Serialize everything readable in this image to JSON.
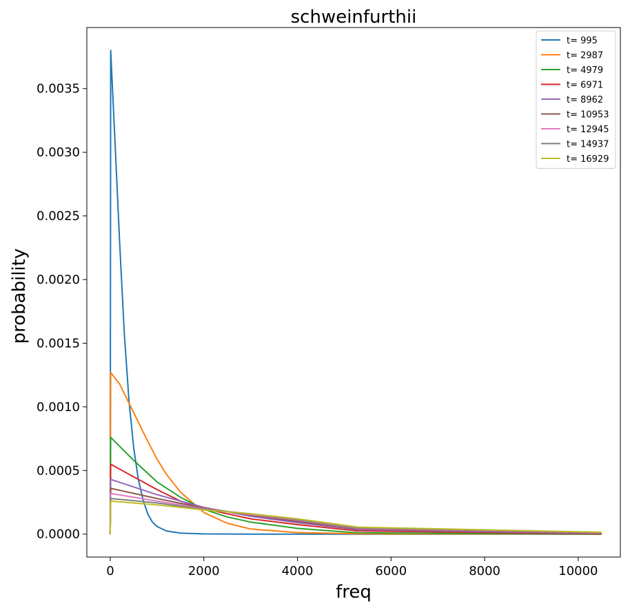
{
  "chart_data": {
    "type": "line",
    "title": "schweinfurthii",
    "xlabel": "freq",
    "ylabel": "probability",
    "xlim": [
      -500,
      10900
    ],
    "ylim": [
      -0.00018,
      0.00398
    ],
    "xticks": [
      0,
      2000,
      4000,
      6000,
      8000,
      10000
    ],
    "xtick_labels": [
      "0",
      "2000",
      "4000",
      "6000",
      "8000",
      "10000"
    ],
    "yticks": [
      0.0,
      0.0005,
      0.001,
      0.0015,
      0.002,
      0.0025,
      0.003,
      0.0035
    ],
    "ytick_labels": [
      "0.0000",
      "0.0005",
      "0.0010",
      "0.0015",
      "0.0020",
      "0.0025",
      "0.0030",
      "0.0035"
    ],
    "grid": false,
    "legend_position": "top-right",
    "series": [
      {
        "name": "t= 995",
        "color": "#1f77b4",
        "x": [
          0,
          10,
          100,
          200,
          300,
          400,
          500,
          600,
          700,
          800,
          900,
          1000,
          1200,
          1500,
          2000,
          3000,
          5300,
          10500
        ],
        "y": [
          0,
          0.0038,
          0.0031,
          0.0023,
          0.00158,
          0.00105,
          0.00068,
          0.00043,
          0.00027,
          0.00016,
          9.5e-05,
          6e-05,
          2.5e-05,
          8e-06,
          2e-06,
          0,
          0,
          0
        ]
      },
      {
        "name": "t= 2987",
        "color": "#ff7f0e",
        "x": [
          0,
          10,
          200,
          400,
          600,
          800,
          1000,
          1200,
          1500,
          2000,
          2500,
          3000,
          4000,
          5300,
          10500
        ],
        "y": [
          0,
          0.00127,
          0.00118,
          0.00103,
          0.00088,
          0.00073,
          0.00059,
          0.00047,
          0.00033,
          0.00017,
          8.5e-05,
          4e-05,
          1.2e-05,
          3e-06,
          0
        ]
      },
      {
        "name": "t= 4979",
        "color": "#2ca02c",
        "x": [
          0,
          10,
          500,
          1000,
          1500,
          2000,
          2500,
          3000,
          4000,
          5300,
          10500
        ],
        "y": [
          0,
          0.00076,
          0.00058,
          0.00041,
          0.00029,
          0.000195,
          0.000135,
          9.5e-05,
          4.5e-05,
          1e-05,
          0
        ]
      },
      {
        "name": "t= 6971",
        "color": "#d62728",
        "x": [
          0,
          10,
          500,
          1000,
          1500,
          2000,
          3000,
          4000,
          5300,
          10500
        ],
        "y": [
          0,
          0.00055,
          0.00045,
          0.00035,
          0.00026,
          0.0002,
          0.00012,
          7.5e-05,
          2.5e-05,
          2e-06
        ]
      },
      {
        "name": "t= 8962",
        "color": "#9467bd",
        "x": [
          0,
          10,
          1000,
          2000,
          3000,
          4000,
          5300,
          10500
        ],
        "y": [
          0,
          0.00043,
          0.00031,
          0.00021,
          0.00014,
          9e-05,
          3.5e-05,
          5e-06
        ]
      },
      {
        "name": "t= 10953",
        "color": "#8c564b",
        "x": [
          0,
          10,
          1000,
          2000,
          3000,
          4000,
          5300,
          10500
        ],
        "y": [
          0,
          0.00036,
          0.00028,
          0.000205,
          0.00015,
          0.0001,
          4e-05,
          8e-06
        ]
      },
      {
        "name": "t= 12945",
        "color": "#e377c2",
        "x": [
          0,
          10,
          1000,
          2000,
          3000,
          4000,
          5300,
          10500
        ],
        "y": [
          0,
          0.00032,
          0.00026,
          0.0002,
          0.000155,
          0.00011,
          4.5e-05,
          1e-05
        ]
      },
      {
        "name": "t= 14937",
        "color": "#7f7f7f",
        "x": [
          0,
          10,
          1000,
          2000,
          3000,
          4000,
          5300,
          10500
        ],
        "y": [
          0,
          0.00028,
          0.000245,
          0.000195,
          0.00016,
          0.000115,
          5e-05,
          1.2e-05
        ]
      },
      {
        "name": "t= 16929",
        "color": "#bcbd22",
        "x": [
          0,
          10,
          1000,
          2000,
          3000,
          4000,
          5300,
          10500
        ],
        "y": [
          0,
          0.00026,
          0.00023,
          0.00019,
          0.00016,
          0.00012,
          5.5e-05,
          1.5e-05
        ]
      }
    ]
  }
}
